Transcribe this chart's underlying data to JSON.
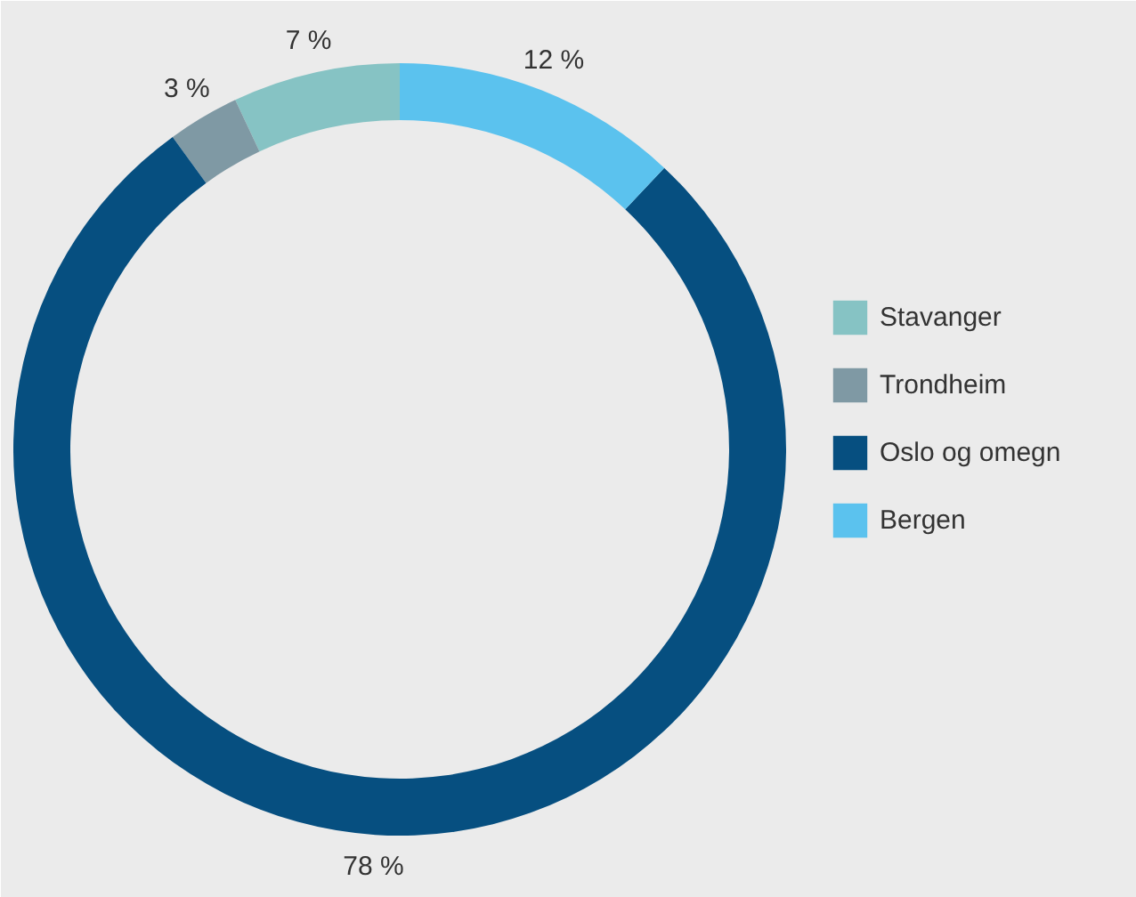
{
  "chart_data": {
    "type": "donut",
    "categories": [
      "Stavanger",
      "Trondheim",
      "Oslo og omegn",
      "Bergen"
    ],
    "values": [
      7,
      3,
      78,
      12
    ],
    "colors": [
      "#86c3c4",
      "#7f99a4",
      "#064f80",
      "#5bc2ee"
    ],
    "value_labels": [
      "7 %",
      "3 %",
      "78 %",
      "12 %"
    ],
    "legend": "right"
  }
}
